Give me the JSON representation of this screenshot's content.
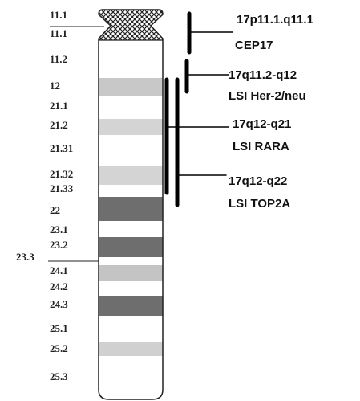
{
  "bands": [
    "11.1",
    "11.1",
    "11.2",
    "12",
    "21.1",
    "21.2",
    "21.31",
    "21.32",
    "21.33",
    "22",
    "23.1",
    "23.2",
    "23.3",
    "24.1",
    "24.2",
    "24.3",
    "25.1",
    "25.2",
    "25.3"
  ],
  "probes": [
    {
      "locus": "17p11.1.q11.1",
      "name": "CEP17"
    },
    {
      "locus": "17q11.2-q12",
      "name": "LSI Her-2/neu"
    },
    {
      "locus": "17q12-q21",
      "name": "LSI RARA"
    },
    {
      "locus": "17q12-q22",
      "name": "LSI TOP2A"
    }
  ]
}
